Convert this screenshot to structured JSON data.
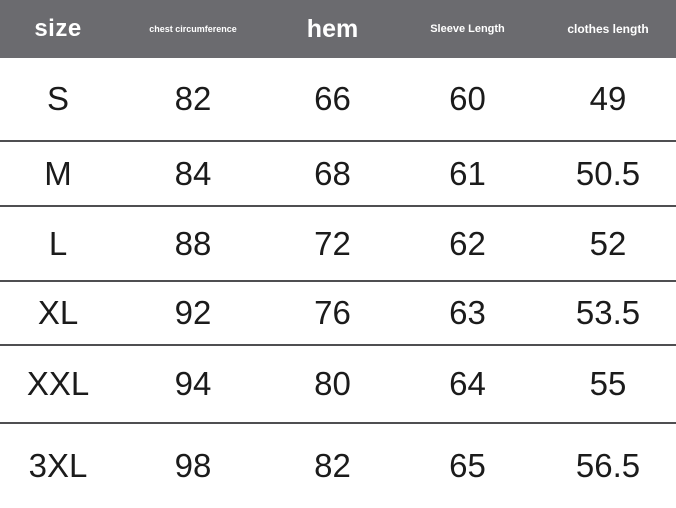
{
  "colors": {
    "header_bg": "#6b6b6f",
    "header_text": "#ffffff",
    "divider": "#4f4f51",
    "text": "#1b1b1b",
    "bg": "#ffffff"
  },
  "table": {
    "columns": [
      {
        "key": "size",
        "label": "size"
      },
      {
        "key": "chest",
        "label": "chest circumference"
      },
      {
        "key": "hem",
        "label": "hem"
      },
      {
        "key": "sleeve",
        "label": "Sleeve Length"
      },
      {
        "key": "clothes",
        "label": "clothes length"
      }
    ],
    "rows": [
      {
        "size": "S",
        "chest": "82",
        "hem": "66",
        "sleeve": "60",
        "clothes": "49"
      },
      {
        "size": "M",
        "chest": "84",
        "hem": "68",
        "sleeve": "61",
        "clothes": "50.5"
      },
      {
        "size": "L",
        "chest": "88",
        "hem": "72",
        "sleeve": "62",
        "clothes": "52"
      },
      {
        "size": "XL",
        "chest": "92",
        "hem": "76",
        "sleeve": "63",
        "clothes": "53.5"
      },
      {
        "size": "XXL",
        "chest": "94",
        "hem": "80",
        "sleeve": "64",
        "clothes": "55"
      },
      {
        "size": "3XL",
        "chest": "98",
        "hem": "82",
        "sleeve": "65",
        "clothes": "56.5"
      }
    ]
  },
  "chart_data": {
    "type": "table",
    "title": "",
    "columns": [
      "size",
      "chest circumference",
      "hem",
      "Sleeve Length",
      "clothes length"
    ],
    "rows": [
      [
        "S",
        82,
        66,
        60,
        49
      ],
      [
        "M",
        84,
        68,
        61,
        50.5
      ],
      [
        "L",
        88,
        72,
        62,
        52
      ],
      [
        "XL",
        92,
        76,
        63,
        53.5
      ],
      [
        "XXL",
        94,
        80,
        64,
        55
      ],
      [
        "3XL",
        98,
        82,
        65,
        56.5
      ]
    ]
  }
}
